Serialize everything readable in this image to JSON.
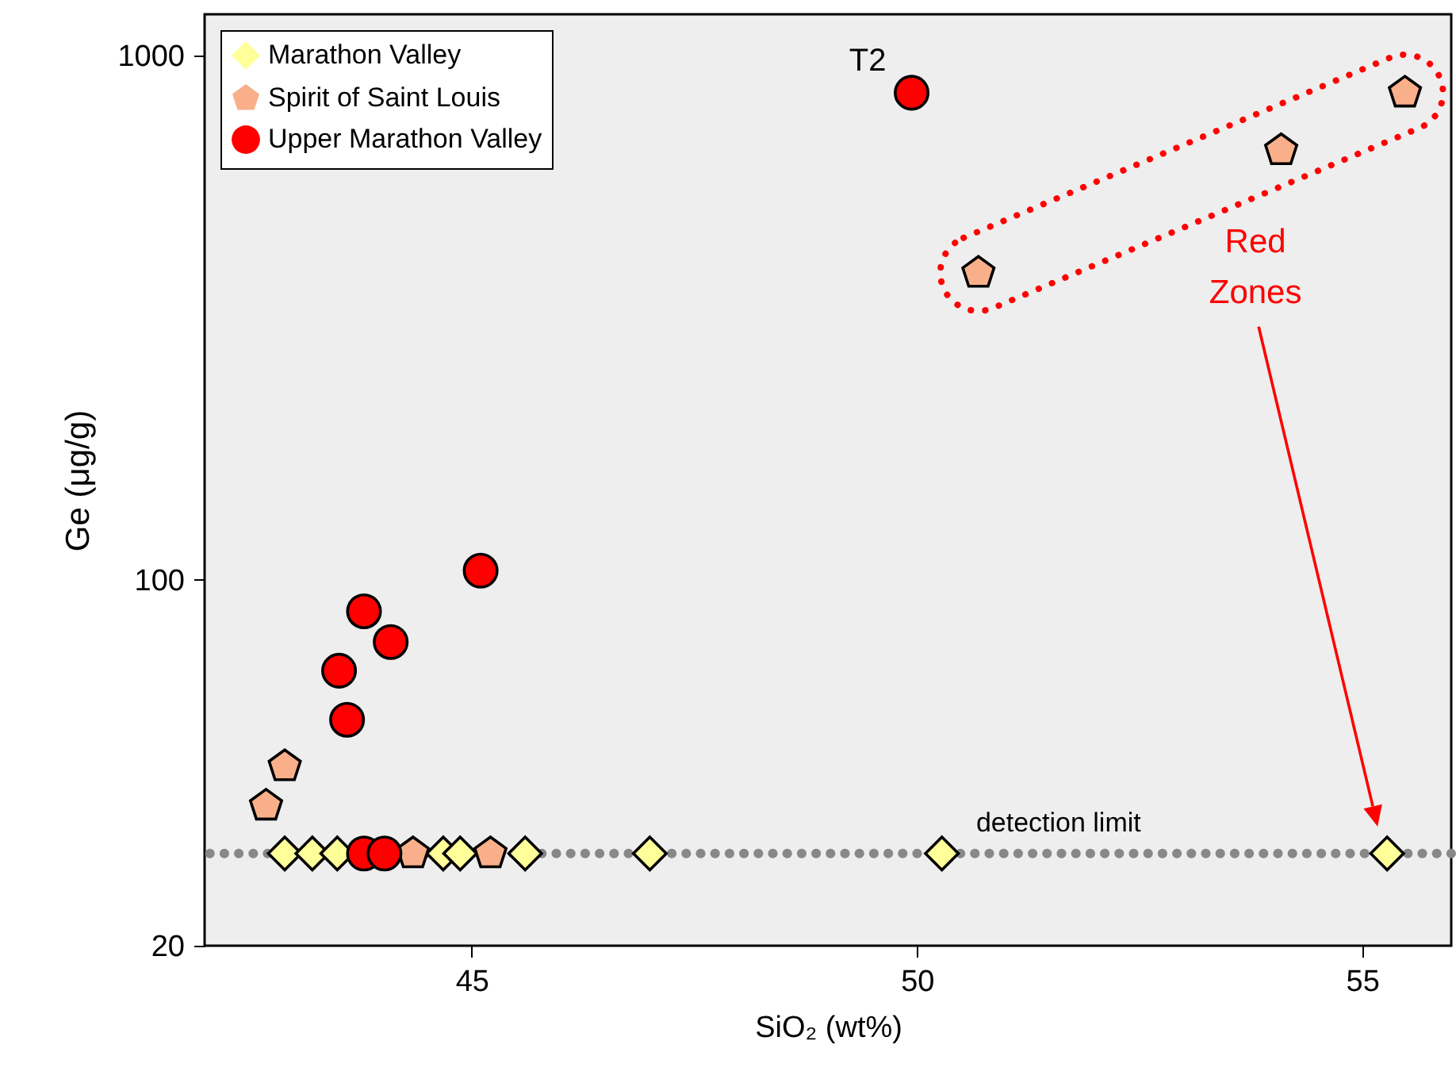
{
  "chart_data": {
    "type": "scatter",
    "xlabel": "SiO₂ (wt%)",
    "ylabel": "Ge (μg/g)",
    "xlim": [
      42,
      56
    ],
    "xticks": [
      45,
      50,
      55
    ],
    "ylim": [
      20,
      1200
    ],
    "yticks": [
      20,
      100,
      1000
    ],
    "log": "y",
    "grid": false,
    "legend": "top left",
    "series": [
      {
        "name": "Marathon Valley",
        "color": "#ffff99",
        "x": [
          42.9,
          43.21,
          43.49,
          44.68,
          44.87,
          45.6,
          47.0,
          50.28,
          55.28
        ],
        "values": [
          30,
          30,
          30,
          30,
          30,
          30,
          30,
          30,
          30
        ]
      },
      {
        "name": "Spirit of Saint Louis",
        "color": "#f9b08a",
        "x": [
          42.69,
          42.9,
          44.34,
          45.21,
          50.69,
          54.09,
          55.48
        ],
        "values": [
          37,
          44,
          30,
          30,
          385,
          660,
          850
        ]
      },
      {
        "name": "Upper Marathon Valley",
        "color": "#ff0000",
        "x": [
          43.51,
          43.6,
          43.79,
          44.09,
          45.1,
          49.94,
          43.79,
          44.02
        ],
        "values": [
          67,
          54,
          87,
          76,
          104,
          850,
          30,
          30
        ]
      }
    ],
    "ref_lines": [
      {
        "axis": "y",
        "value": 30,
        "label": "detection limit",
        "color": "#888888",
        "line_style": "dotted"
      }
    ],
    "annotations": [
      {
        "text": "T2",
        "x": 49.94,
        "y": 850
      },
      "Red Zones"
    ]
  }
}
